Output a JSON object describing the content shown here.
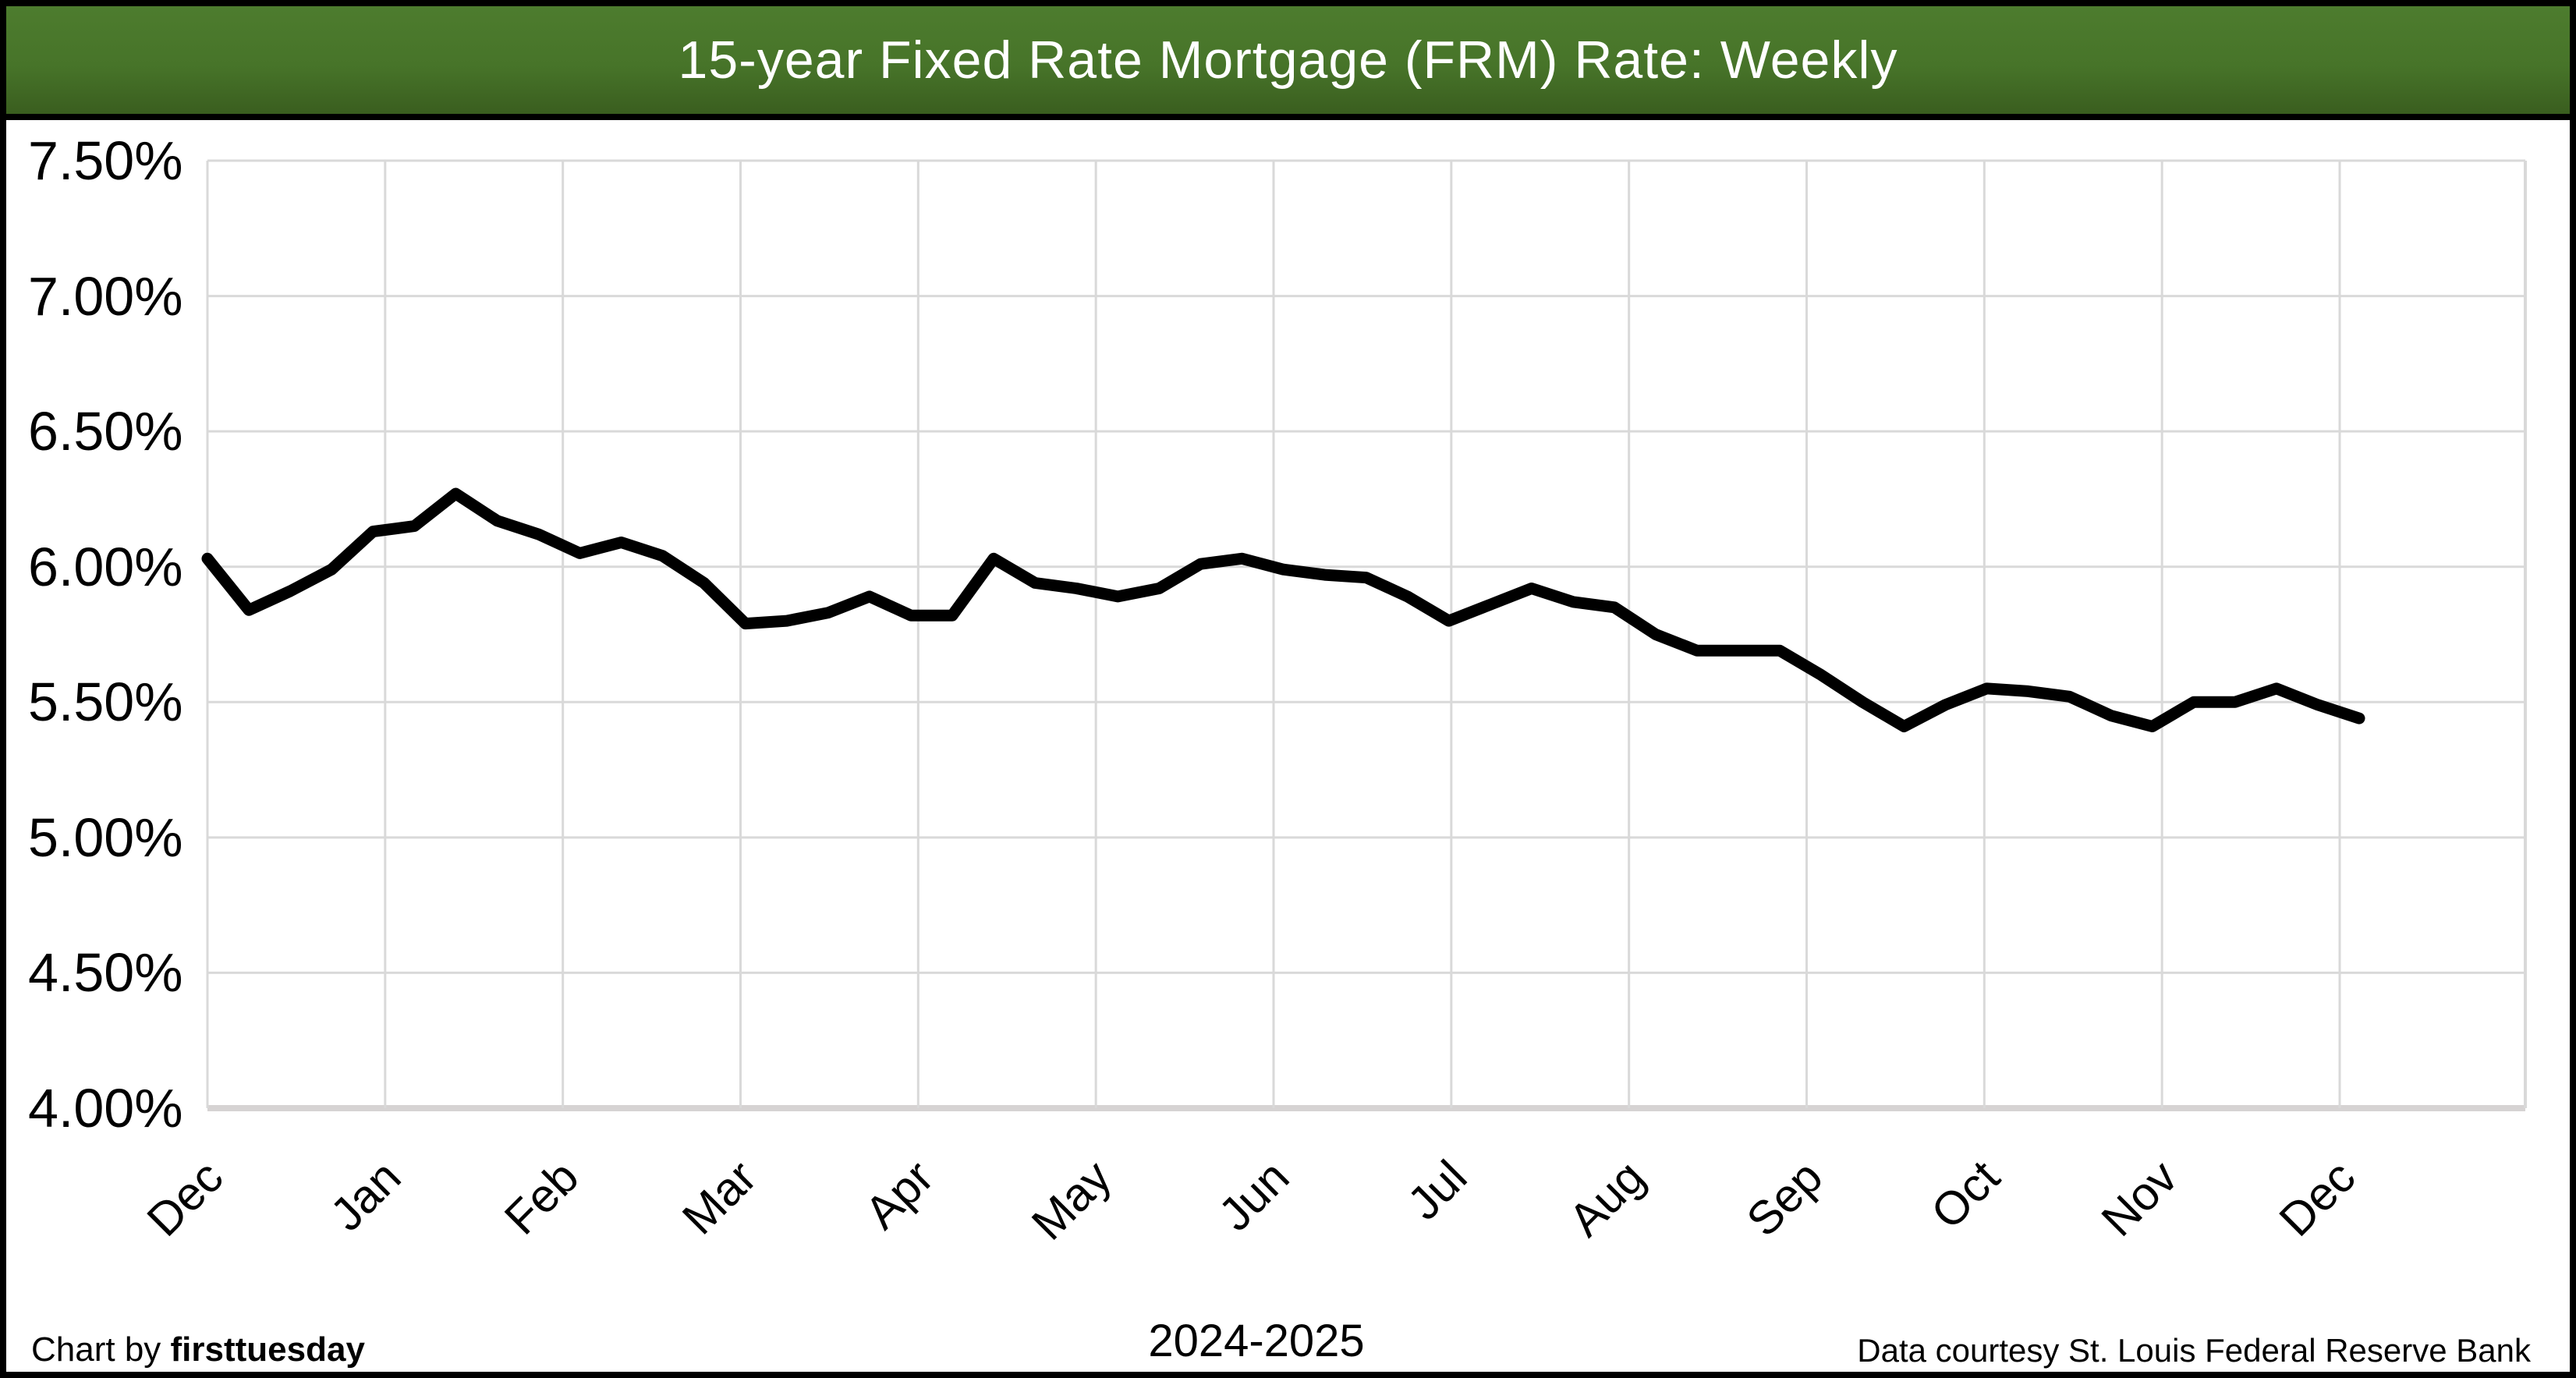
{
  "header": {
    "title": "15-year Fixed Rate Mortgage (FRM) Rate: Weekly"
  },
  "colors": {
    "header_gradient_top": "#4d7c2e",
    "header_gradient_bottom": "#3a5e1f",
    "header_text": "#ffffff",
    "frame_border": "#000000",
    "background": "#ffffff",
    "gridline": "#d9d9d9",
    "axis_line": "#d6d3d3",
    "data_line": "#000000",
    "label_text": "#000000"
  },
  "y_axis": {
    "tick_labels": [
      "7.50%",
      "7.00%",
      "6.50%",
      "6.00%",
      "5.50%",
      "5.00%",
      "4.50%",
      "4.00%"
    ]
  },
  "x_axis": {
    "tick_labels": [
      "Dec",
      "Jan",
      "Feb",
      "Mar",
      "Apr",
      "May",
      "Jun",
      "Jul",
      "Aug",
      "Sep",
      "Oct",
      "Nov",
      "Dec"
    ]
  },
  "footer": {
    "credit_prefix": "Chart by ",
    "credit_brand": "firsttuesday",
    "period": "2024-2025",
    "source": "Data courtesy St. Louis Federal Reserve Bank"
  },
  "chart_data": {
    "type": "line",
    "title": "15-year Fixed Rate Mortgage (FRM) Rate: Weekly",
    "frequency": "weekly",
    "categories_months": [
      "Dec",
      "Jan",
      "Feb",
      "Mar",
      "Apr",
      "May",
      "Jun",
      "Jul",
      "Aug",
      "Sep",
      "Oct",
      "Nov",
      "Dec"
    ],
    "xlabel": "2024-2025",
    "ylabel": "",
    "ylim": [
      4.0,
      7.5
    ],
    "y_tick_step": 0.5,
    "y_tick_format": "0.00%",
    "grid": true,
    "legend": "none",
    "series": [
      {
        "name": "15-year FRM rate (%)",
        "values": [
          6.03,
          5.84,
          5.91,
          5.99,
          6.13,
          6.15,
          6.27,
          6.17,
          6.12,
          6.05,
          6.09,
          6.04,
          5.94,
          5.79,
          5.8,
          5.83,
          5.89,
          5.82,
          5.82,
          6.03,
          5.94,
          5.92,
          5.89,
          5.92,
          6.01,
          6.03,
          5.99,
          5.97,
          5.96,
          5.89,
          5.8,
          5.86,
          5.92,
          5.87,
          5.85,
          5.75,
          5.69,
          5.69,
          5.69,
          5.6,
          5.5,
          5.41,
          5.49,
          5.55,
          5.54,
          5.52,
          5.45,
          5.41,
          5.5,
          5.5,
          5.55,
          5.49,
          5.44
        ]
      }
    ],
    "annotations": {
      "source": "Data courtesy St. Louis Federal Reserve Bank",
      "credit": "Chart by firsttuesday"
    }
  }
}
